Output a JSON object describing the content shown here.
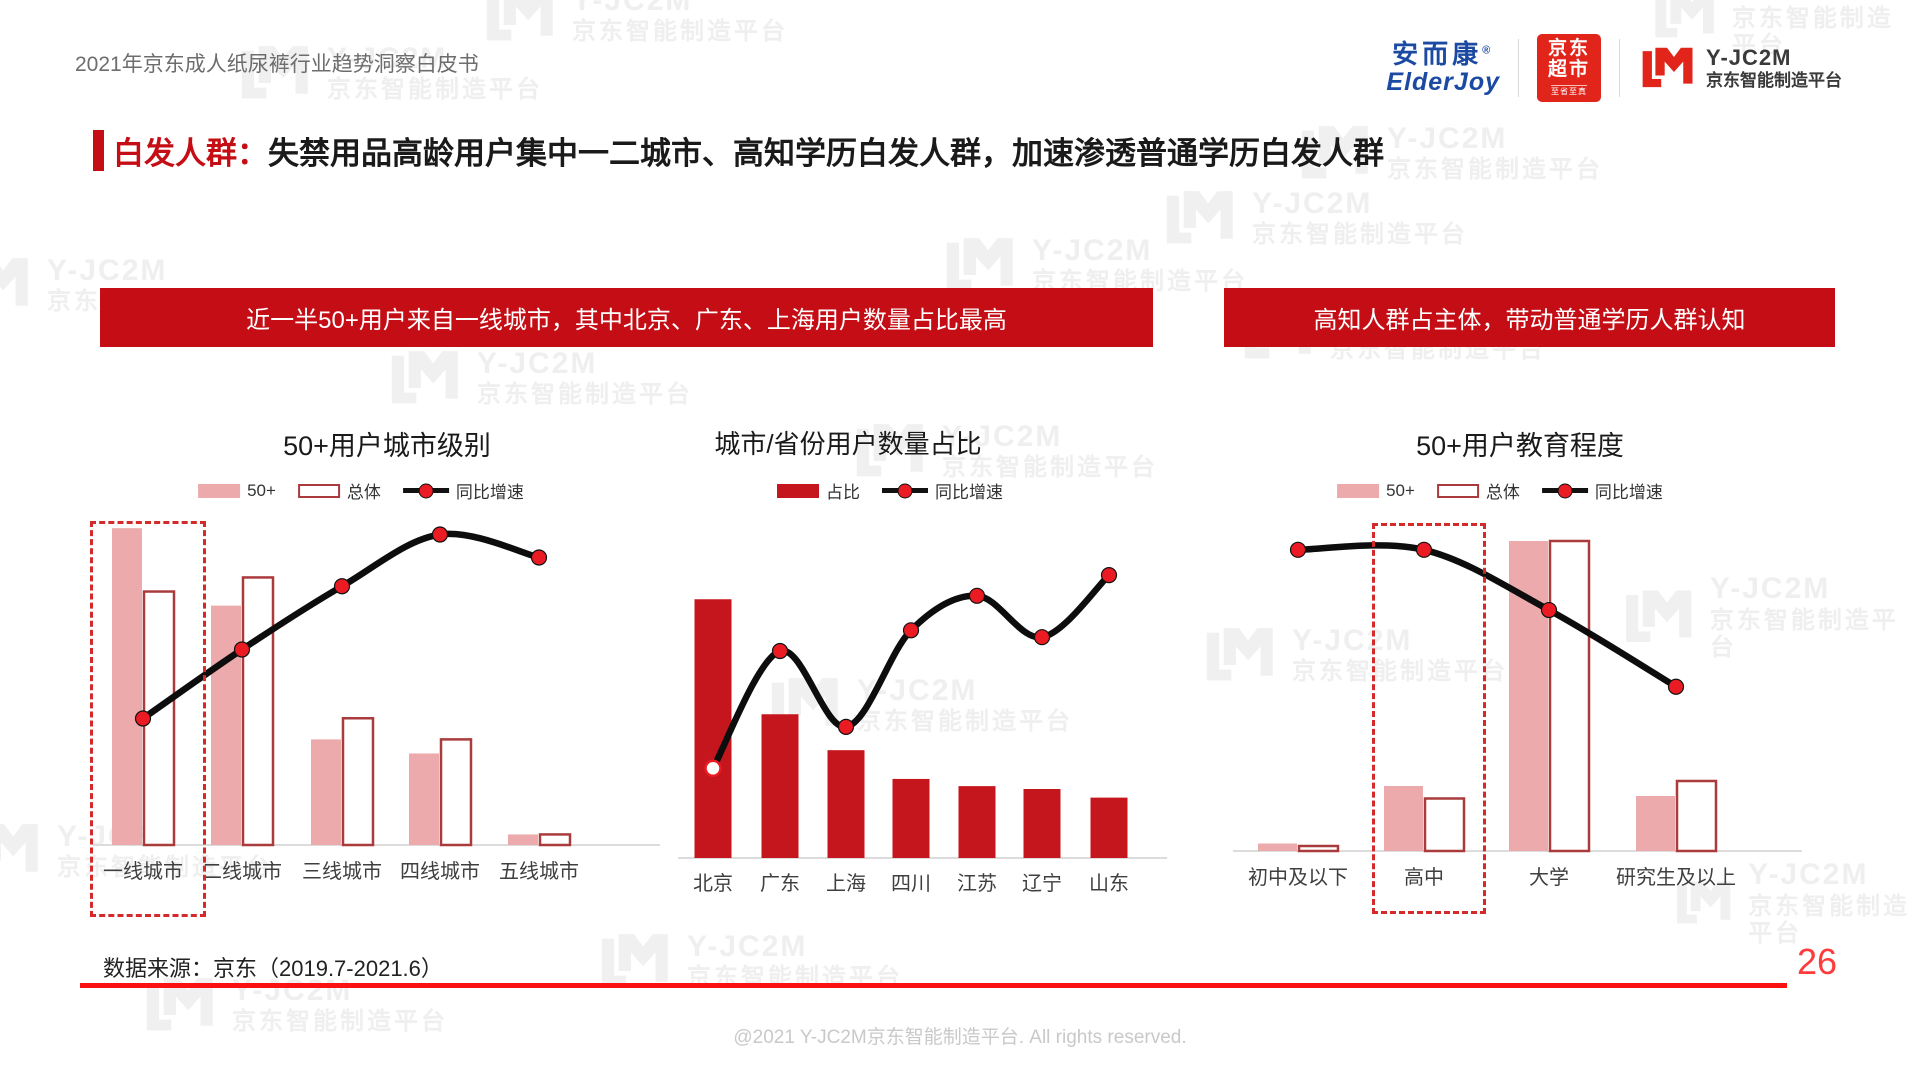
{
  "page": {
    "header_subtitle": "2021年京东成人纸尿裤行业趋势洞察白皮书",
    "data_source": "数据来源：京东（2019.7-2021.6）",
    "page_number": "26",
    "footer": "@2021 Y-JC2M京东智能制造平台. All rights reserved."
  },
  "logos": {
    "elderjoy": {
      "cn": "安而康",
      "reg": "®",
      "en": "ElderJoy"
    },
    "jd_market": {
      "line1": "京东",
      "line2": "超市",
      "tagline": "至省至真"
    },
    "yjc2m": {
      "name": "Y-JC2M",
      "subtitle": "京东智能制造平台"
    }
  },
  "title": {
    "highlight": "白发人群：",
    "rest": "失禁用品高龄用户集中一二城市、高知学历白发人群，加速渗透普通学历白发人群"
  },
  "banners": [
    "近一半50+用户来自一线城市，其中北京、广东、上海用户数量占比最高",
    "高知人群占主体，带动普通学历人群认知"
  ],
  "watermark": {
    "line1": "Y-JC2M",
    "line2": "京东智能制造平台"
  },
  "colors": {
    "accent_red": "#c40d14",
    "bright_red": "#fb1111",
    "bar_red": "#c5161d",
    "bar_pink": "#ecaaad",
    "bar_outline": "#aa3b3d",
    "line_black": "#0d0d0d",
    "dot_red": "#ea1b23",
    "jd_red": "#e1251b",
    "elderjoy_blue": "#1b4aa2"
  },
  "chart_data": [
    {
      "type": "bar+line",
      "title": "50+用户城市级别",
      "categories": [
        "一线城市",
        "二线城市",
        "三线城市",
        "四线城市",
        "五线城市"
      ],
      "series": [
        {
          "name": "50+",
          "type": "bar",
          "style": "pink",
          "values": [
            45,
            34,
            15,
            13,
            1.5
          ]
        },
        {
          "name": "总体",
          "type": "bar",
          "style": "outline",
          "values": [
            36,
            38,
            18,
            15,
            1.5
          ]
        },
        {
          "name": "同比增速",
          "type": "line",
          "values": [
            22,
            34,
            45,
            54,
            50
          ]
        }
      ],
      "unit": "%",
      "ylim_bar": [
        0,
        49
      ],
      "ylim_line": [
        0,
        60
      ],
      "legend_position": "top",
      "grid": false,
      "highlight_category": "一线城市",
      "note": "values estimated from unlabeled axis"
    },
    {
      "type": "bar+line",
      "title": "城市/省份用户数量占比",
      "categories": [
        "北京",
        "广东",
        "上海",
        "四川",
        "江苏",
        "辽宁",
        "山东"
      ],
      "series": [
        {
          "name": "占比",
          "type": "bar",
          "style": "solid",
          "values": [
            18,
            10,
            7.5,
            5.5,
            5,
            4.8,
            4.2
          ]
        },
        {
          "name": "同比增速",
          "type": "line",
          "values": [
            13,
            30,
            19,
            33,
            38,
            32,
            41
          ]
        }
      ],
      "unit": "%",
      "ylim_bar": [
        0,
        24
      ],
      "ylim_line": [
        0,
        50
      ],
      "legend_position": "top",
      "grid": false,
      "highlight_category": null,
      "note": "values estimated from unlabeled axis; first line point drawn hollow"
    },
    {
      "type": "bar+line",
      "title": "50+用户教育程度",
      "categories": [
        "初中及以下",
        "高中",
        "大学",
        "研究生及以上"
      ],
      "series": [
        {
          "name": "50+",
          "type": "bar",
          "style": "pink",
          "values": [
            1.5,
            13,
            62,
            11
          ]
        },
        {
          "name": "总体",
          "type": "bar",
          "style": "outline",
          "values": [
            1,
            10.5,
            62,
            14
          ]
        },
        {
          "name": "同比增速",
          "type": "line",
          "values": [
            55,
            55,
            44,
            30
          ]
        }
      ],
      "unit": "%",
      "ylim_bar": [
        0,
        69
      ],
      "ylim_line": [
        0,
        63
      ],
      "legend_position": "top",
      "grid": false,
      "highlight_category": "高中",
      "note": "values estimated from unlabeled axis"
    }
  ]
}
